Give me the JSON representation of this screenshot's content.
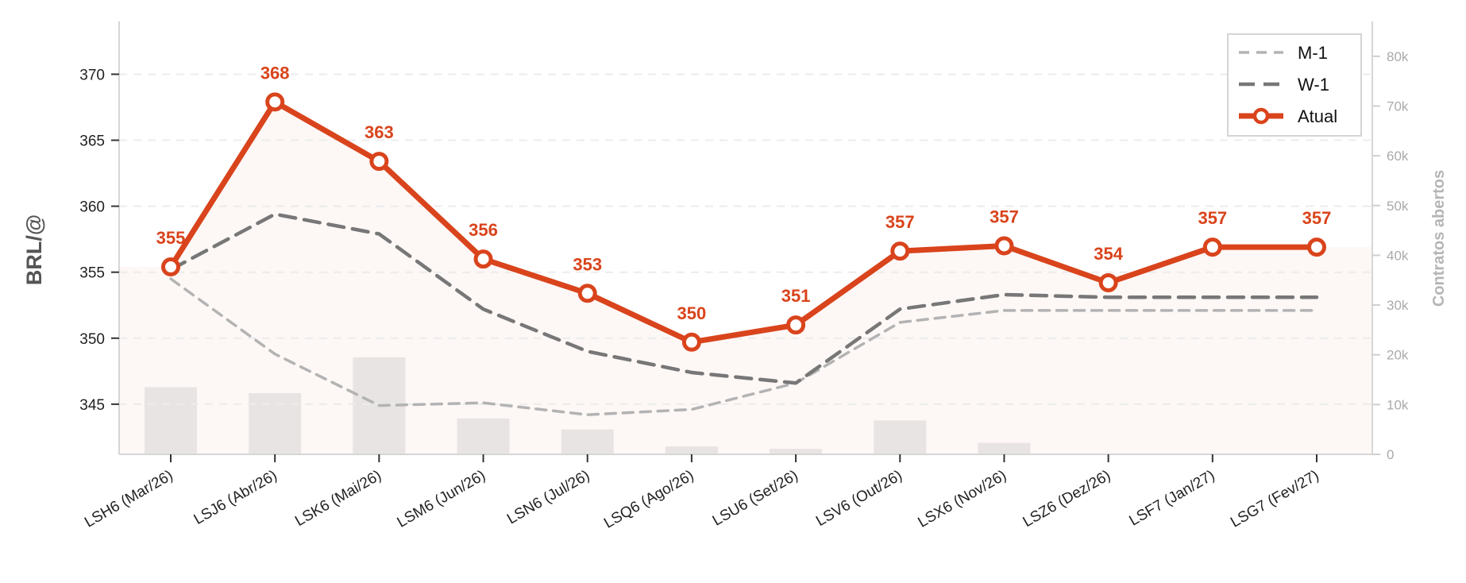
{
  "chart_data": {
    "type": "line",
    "categories": [
      "LSH6 (Mar/26)",
      "LSJ6 (Abr/26)",
      "LSK6 (Mai/26)",
      "LSM6 (Jun/26)",
      "LSN6 (Jul/26)",
      "LSQ6 (Ago/26)",
      "LSU6 (Set/26)",
      "LSV6 (Out/26)",
      "LSX6 (Nov/26)",
      "LSZ6 (Dez/26)",
      "LSF7 (Jan/27)",
      "LSG7 (Fev/27)"
    ],
    "series": [
      {
        "name": "M-1",
        "style": "dashed-light",
        "color": "#b3b3b3",
        "values": [
          354.5,
          348.8,
          344.9,
          345.1,
          344.2,
          344.6,
          346.6,
          351.2,
          352.1,
          352.1,
          352.1,
          352.1
        ]
      },
      {
        "name": "W-1",
        "style": "dashed-dark",
        "color": "#777777",
        "values": [
          355.2,
          359.4,
          357.9,
          352.2,
          349.0,
          347.4,
          346.6,
          352.2,
          353.3,
          353.1,
          353.1,
          353.1
        ]
      },
      {
        "name": "Atual",
        "style": "solid-markers",
        "color": "#d9441c",
        "values": [
          355.4,
          367.9,
          363.4,
          356.0,
          353.4,
          349.7,
          351.0,
          356.6,
          357.0,
          354.2,
          356.9,
          356.9
        ],
        "data_labels": [
          "355",
          "368",
          "363",
          "356",
          "353",
          "350",
          "351",
          "357",
          "357",
          "354",
          "357",
          "357"
        ]
      }
    ],
    "open_interest": {
      "name": "Contratos abertos",
      "color": "#e8e4e3",
      "values": [
        13500,
        12300,
        19500,
        7200,
        5000,
        1600,
        1100,
        6800,
        2300,
        0,
        0,
        0
      ]
    },
    "ylabel": "BRL/@",
    "ylabel_right": "Contratos abertos",
    "ylim": [
      341.2,
      374.0
    ],
    "yticks": [
      345,
      350,
      355,
      360,
      365,
      370
    ],
    "ylim_right": [
      0,
      87000
    ],
    "yticks_right": [
      0,
      10000,
      20000,
      30000,
      40000,
      50000,
      60000,
      70000,
      80000
    ],
    "yticks_right_labels": [
      "0",
      "10k",
      "20k",
      "30k",
      "40k",
      "50k",
      "60k",
      "70k",
      "80k"
    ],
    "grid": "horizontal-dashed",
    "legend_position": "top-right",
    "area_fill_color": "#fdf7f6"
  }
}
